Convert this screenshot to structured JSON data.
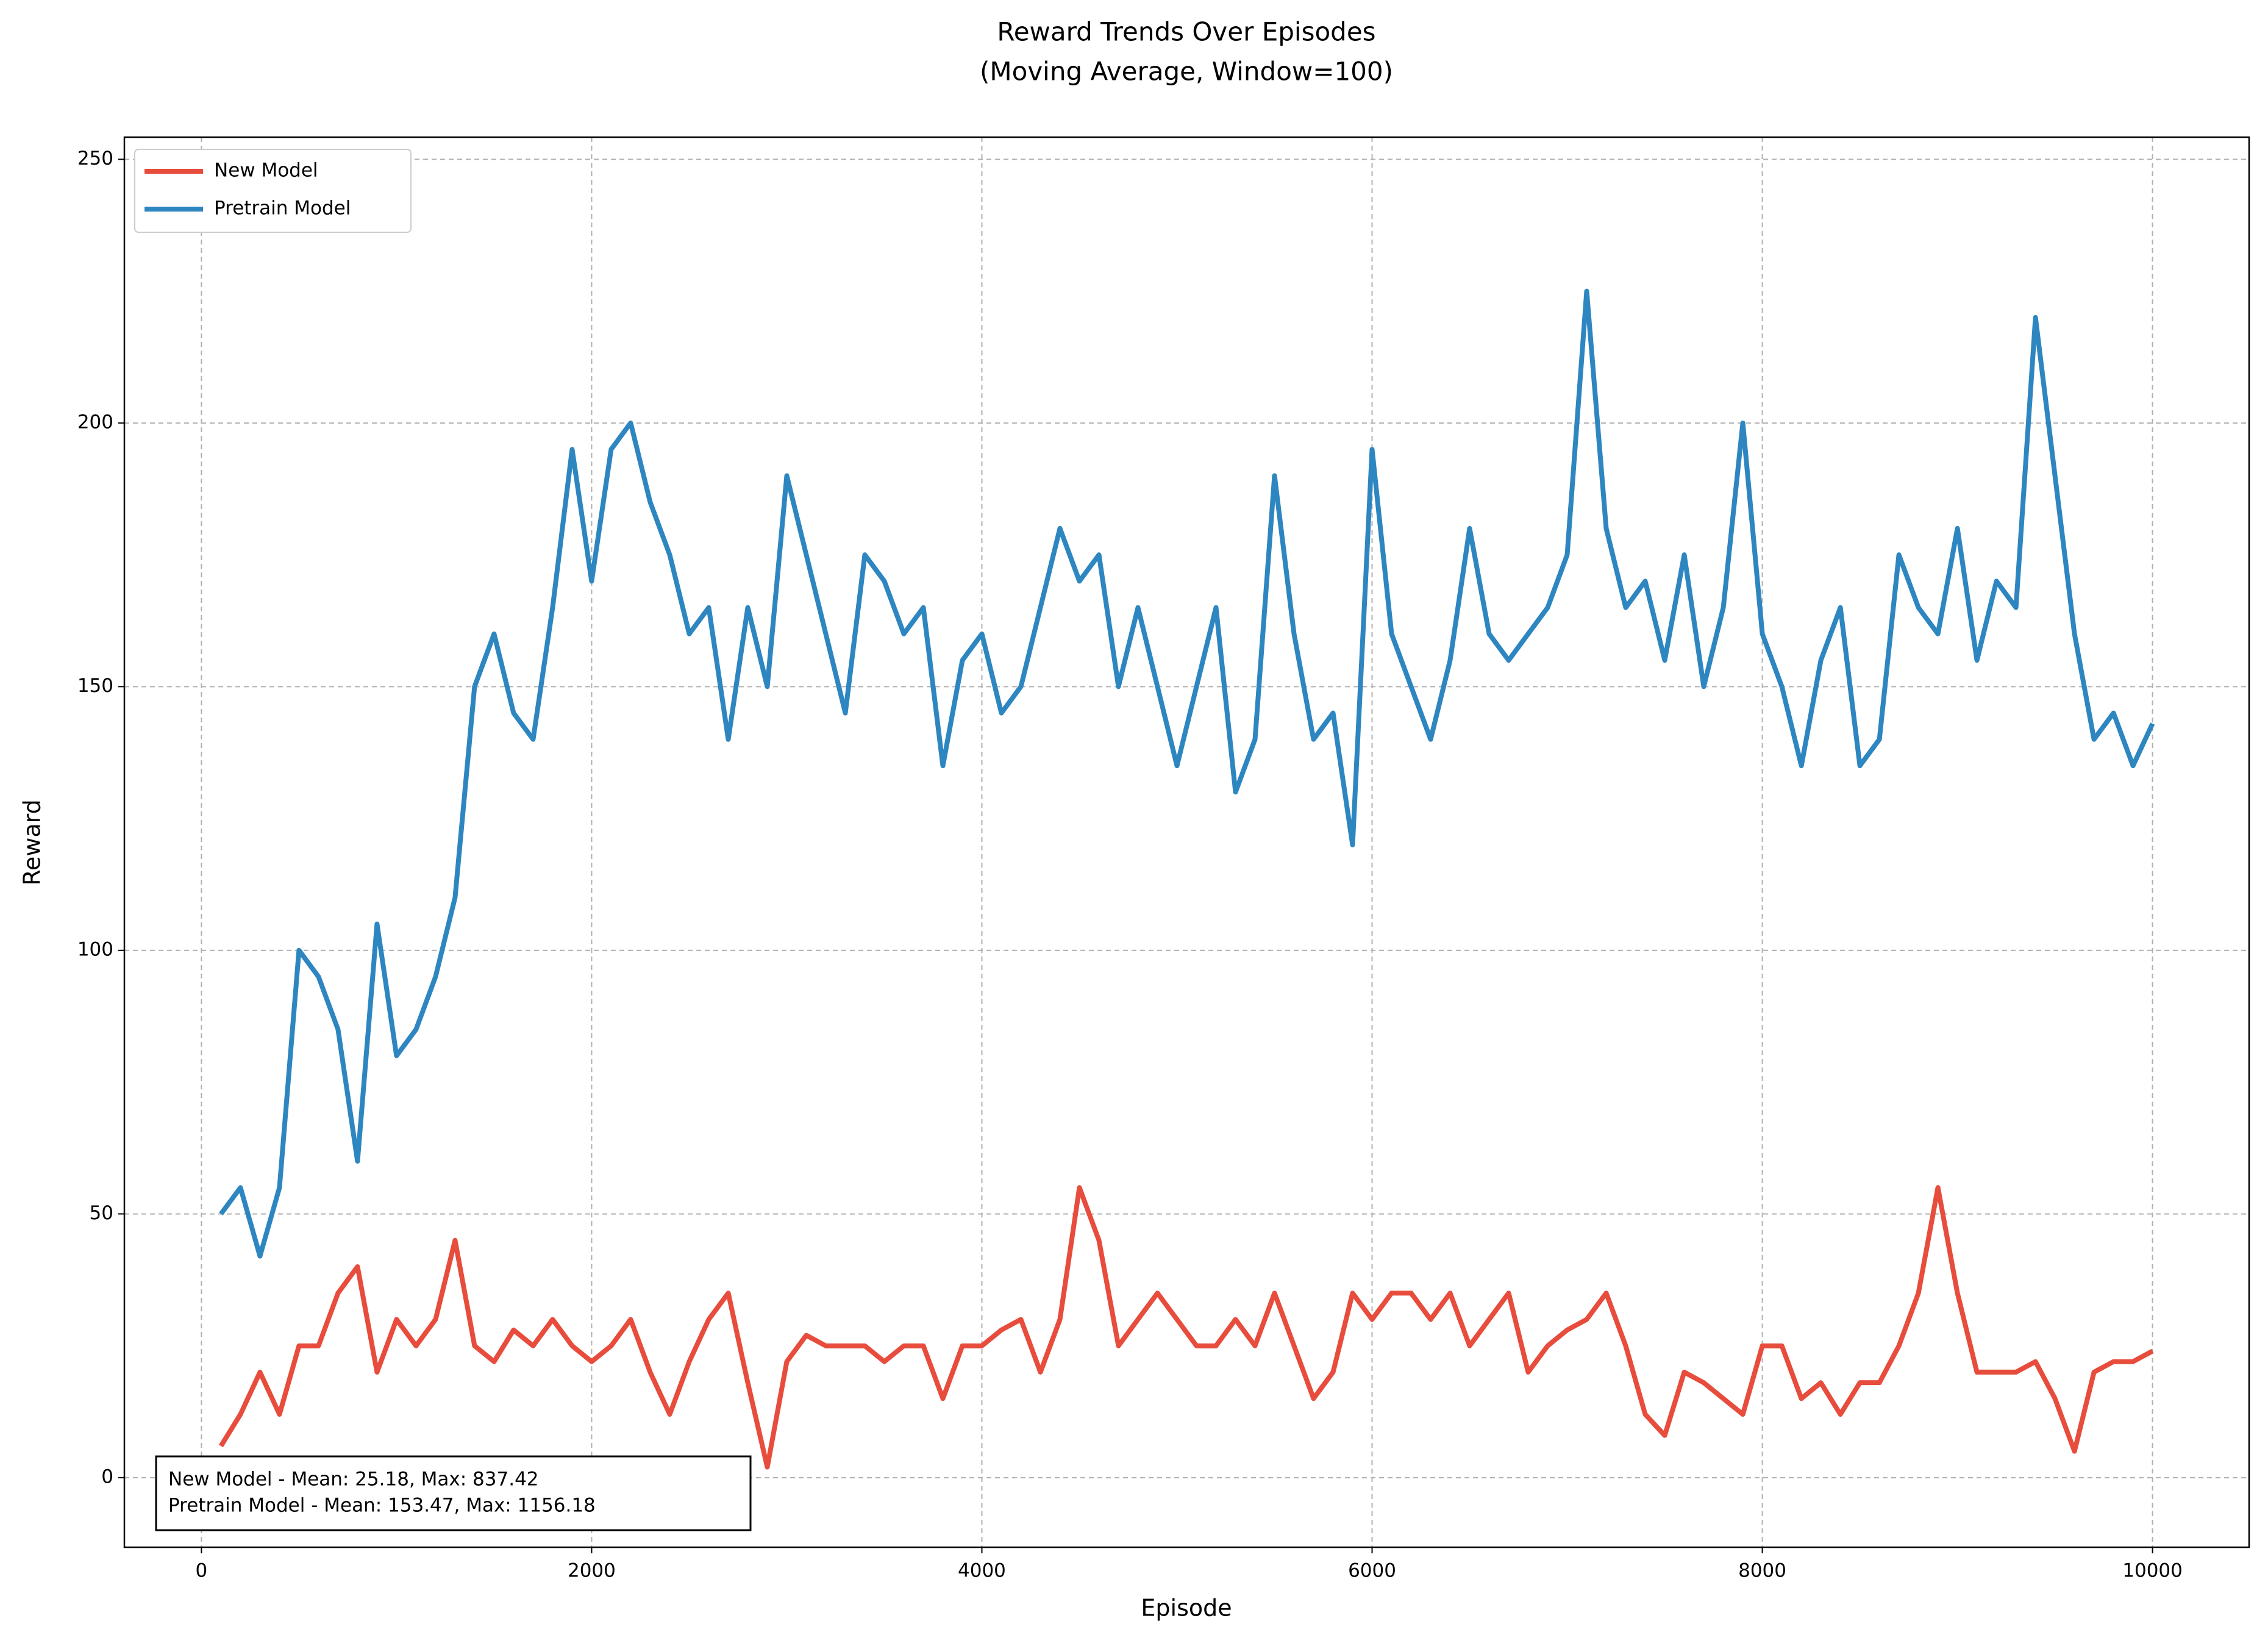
{
  "chart_data": {
    "type": "line",
    "title": "Reward Trends Over Episodes",
    "subtitle": "(Moving Average, Window=100)",
    "x_label": "Episode",
    "y_label": "Reward",
    "x": [
      100,
      200,
      300,
      400,
      500,
      600,
      700,
      800,
      900,
      1000,
      1100,
      1200,
      1300,
      1400,
      1500,
      1600,
      1700,
      1800,
      1900,
      2000,
      2100,
      2200,
      2300,
      2400,
      2500,
      2600,
      2700,
      2800,
      2900,
      3000,
      3100,
      3200,
      3300,
      3400,
      3500,
      3600,
      3700,
      3800,
      3900,
      4000,
      4100,
      4200,
      4300,
      4400,
      4500,
      4600,
      4700,
      4800,
      4900,
      5000,
      5100,
      5200,
      5300,
      5400,
      5500,
      5600,
      5700,
      5800,
      5900,
      6000,
      6100,
      6200,
      6300,
      6400,
      6500,
      6600,
      6700,
      6800,
      6900,
      7000,
      7100,
      7200,
      7300,
      7400,
      7500,
      7600,
      7700,
      7800,
      7900,
      8000,
      8100,
      8200,
      8300,
      8400,
      8500,
      8600,
      8700,
      8800,
      8900,
      9000,
      9100,
      9200,
      9300,
      9400,
      9500,
      9600,
      9700,
      9800,
      9900,
      10000
    ],
    "series": [
      {
        "name": "New Model",
        "color": "#e74c3c",
        "values": [
          6,
          12,
          20,
          12,
          25,
          25,
          35,
          40,
          20,
          30,
          25,
          30,
          45,
          25,
          22,
          28,
          25,
          30,
          25,
          22,
          25,
          30,
          20,
          12,
          22,
          30,
          35,
          18,
          2,
          22,
          27,
          25,
          25,
          25,
          22,
          25,
          25,
          15,
          25,
          25,
          28,
          30,
          20,
          30,
          55,
          45,
          25,
          30,
          35,
          30,
          25,
          25,
          30,
          25,
          35,
          25,
          15,
          20,
          35,
          30,
          35,
          35,
          30,
          35,
          25,
          30,
          35,
          20,
          25,
          28,
          30,
          35,
          25,
          12,
          8,
          20,
          18,
          15,
          12,
          25,
          25,
          15,
          18,
          12,
          18,
          18,
          25,
          35,
          55,
          35,
          20,
          20,
          20,
          22,
          15,
          5,
          20,
          22,
          22,
          24
        ]
      },
      {
        "name": "Pretrain Model",
        "color": "#2e86c1",
        "values": [
          50,
          55,
          42,
          55,
          100,
          95,
          85,
          60,
          105,
          80,
          85,
          95,
          110,
          150,
          160,
          145,
          140,
          165,
          195,
          170,
          195,
          200,
          185,
          175,
          160,
          165,
          140,
          165,
          150,
          190,
          175,
          160,
          145,
          175,
          170,
          160,
          165,
          135,
          155,
          160,
          145,
          150,
          165,
          180,
          170,
          175,
          150,
          165,
          150,
          135,
          150,
          165,
          130,
          140,
          190,
          160,
          140,
          145,
          120,
          195,
          160,
          150,
          140,
          155,
          180,
          160,
          155,
          160,
          165,
          175,
          225,
          180,
          165,
          170,
          155,
          175,
          150,
          165,
          200,
          160,
          150,
          135,
          155,
          165,
          135,
          140,
          175,
          165,
          160,
          180,
          155,
          170,
          165,
          220,
          190,
          160,
          140,
          145,
          135,
          143
        ]
      }
    ],
    "annotation": [
      "New Model - Mean: 25.18, Max: 837.42",
      "Pretrain Model - Mean: 153.47, Max: 1156.18"
    ],
    "xlim": [
      -395,
      10495
    ],
    "ylim": [
      -13.2,
      254.2
    ],
    "xticks": [
      0,
      2000,
      4000,
      6000,
      8000,
      10000
    ],
    "yticks": [
      0,
      50,
      100,
      150,
      200,
      250
    ],
    "grid": true,
    "legend": "upper left"
  }
}
